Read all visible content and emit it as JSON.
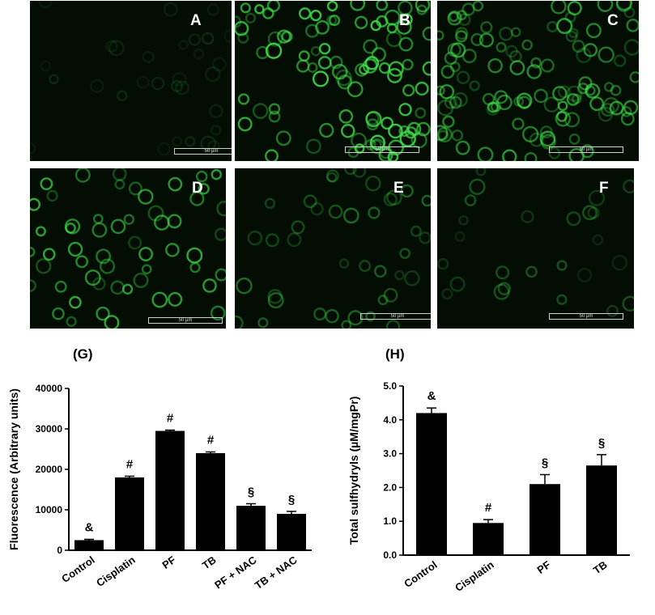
{
  "panels": [
    {
      "letter": "A",
      "scale": "50 µm",
      "density": 0.15,
      "count": 30
    },
    {
      "letter": "B",
      "scale": "50 µm",
      "density": 0.9,
      "count": 95
    },
    {
      "letter": "C",
      "scale": "50 µm",
      "density": 0.7,
      "count": 110
    },
    {
      "letter": "D",
      "scale": "50 µm",
      "density": 0.75,
      "count": 55
    },
    {
      "letter": "E",
      "scale": "50 µm",
      "density": 0.45,
      "count": 40
    },
    {
      "letter": "F",
      "scale": "50 µm",
      "density": 0.35,
      "count": 25
    }
  ],
  "colors": {
    "fluor": "#3fe04a",
    "bar": "#000000",
    "panel_bg": "#030d03"
  },
  "chart_data": [
    {
      "type": "bar",
      "panel_label": "(G)",
      "ylabel": "Fluorescence (Arbitrary units)",
      "xlabel": "",
      "categories": [
        "Control",
        "Cisplatin",
        "PF",
        "TB",
        "PF + NAC",
        "TB + NAC"
      ],
      "values": [
        2500,
        18000,
        29500,
        24000,
        11000,
        9000
      ],
      "errors": [
        200,
        300,
        200,
        300,
        500,
        600
      ],
      "annotations": [
        "&",
        "#",
        "#",
        "#",
        "§",
        "§"
      ],
      "yticks": [
        "0",
        "10000",
        "20000",
        "30000",
        "40000"
      ],
      "ylim": [
        0,
        40000
      ]
    },
    {
      "type": "bar",
      "panel_label": "(H)",
      "ylabel": "Total sulfhydryls (µM/mgPr)",
      "xlabel": "",
      "categories": [
        "Control",
        "Cisplatin",
        "PF",
        "TB"
      ],
      "values": [
        4.2,
        0.95,
        2.1,
        2.65
      ],
      "errors": [
        0.15,
        0.1,
        0.28,
        0.32
      ],
      "annotations": [
        "&",
        "#",
        "§",
        "§"
      ],
      "yticks": [
        "0.0",
        "1.0",
        "2.0",
        "3.0",
        "4.0",
        "5.0"
      ],
      "ylim": [
        0,
        5
      ]
    }
  ]
}
